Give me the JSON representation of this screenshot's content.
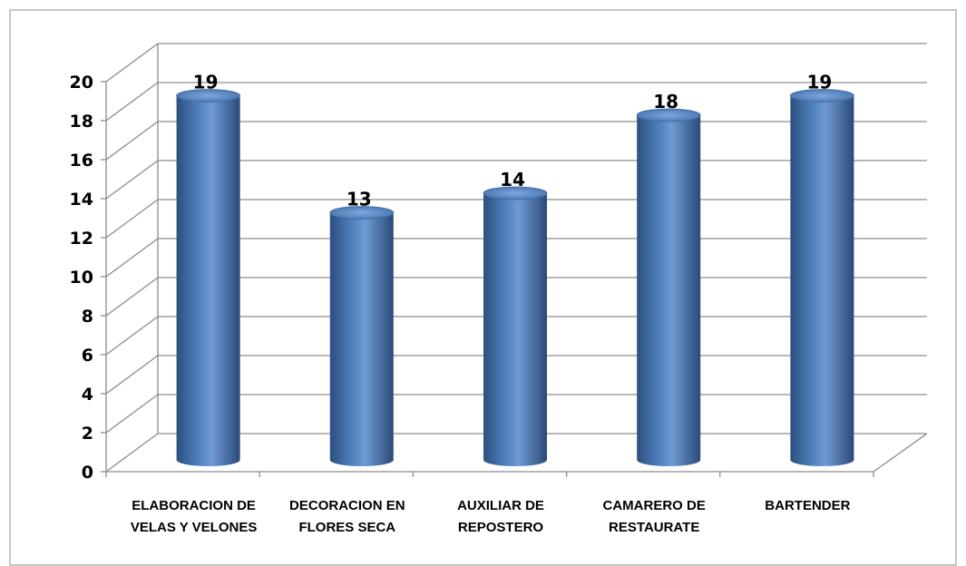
{
  "chart_data": {
    "type": "bar",
    "title": "",
    "xlabel": "",
    "ylabel": "",
    "categories": [
      "ELABORACION DE\nVELAS Y VELONES",
      "DECORACION EN\nFLORES SECA",
      "AUXILIAR DE\nREPOSTERO",
      "CAMARERO DE\nRESTAURATE",
      "BARTENDER"
    ],
    "values": [
      19,
      13,
      14,
      18,
      19
    ],
    "data_labels": [
      "19",
      "13",
      "14",
      "18",
      "19"
    ],
    "ylim": [
      0,
      20
    ],
    "yticks": [
      "0",
      "2",
      "4",
      "6",
      "8",
      "10",
      "12",
      "14",
      "16",
      "18",
      "20"
    ],
    "grid": true,
    "legend": "none",
    "bar_color": "#4F81BD",
    "bar_shape": "cylinder"
  }
}
